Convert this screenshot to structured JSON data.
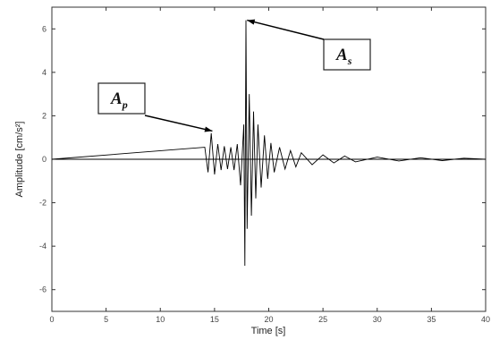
{
  "chart_data": {
    "type": "line",
    "title": "",
    "xlabel": "Time [s]",
    "ylabel": "Amplitude [cm/s²]",
    "xlim": [
      0,
      40
    ],
    "ylim": [
      -7,
      7
    ],
    "xticks": [
      0,
      5,
      10,
      15,
      20,
      25,
      30,
      35,
      40
    ],
    "yticks": [
      -6,
      -4,
      -2,
      0,
      2,
      4,
      6
    ],
    "grid": false,
    "legend": "none",
    "line_color": "#000000",
    "series": [
      {
        "values_description_free": true,
        "x": [
          0,
          14.1,
          14.4,
          14.7,
          15.0,
          15.3,
          15.6,
          15.9,
          16.2,
          16.5,
          16.8,
          17.1,
          17.4,
          17.7,
          17.8,
          17.9,
          18.0,
          18.2,
          18.4,
          18.6,
          18.8,
          19.0,
          19.3,
          19.6,
          19.9,
          20.2,
          20.5,
          21.0,
          21.5,
          22.0,
          22.5,
          23.0,
          24.0,
          25.0,
          26.0,
          27.0,
          28.0,
          30.0,
          32.0,
          34.0,
          36.0,
          38.0,
          40.0
        ],
        "y": [
          0,
          0.55,
          -0.6,
          1.2,
          -0.7,
          0.7,
          -0.5,
          0.6,
          -0.45,
          0.55,
          -0.5,
          0.7,
          -1.2,
          1.6,
          -4.9,
          6.4,
          -3.2,
          3.0,
          -2.6,
          2.2,
          -1.8,
          1.6,
          -1.3,
          1.1,
          -0.9,
          0.75,
          -0.6,
          0.55,
          -0.45,
          0.4,
          -0.35,
          0.3,
          -0.25,
          0.2,
          -0.17,
          0.15,
          -0.12,
          0.1,
          -0.08,
          0.07,
          -0.06,
          0.05,
          0
        ]
      }
    ],
    "annotations": [
      {
        "label": "A",
        "subscript": "p",
        "x": 14.8,
        "y": 1.3
      },
      {
        "label": "A",
        "subscript": "s",
        "x": 18.0,
        "y": 6.4
      }
    ]
  }
}
